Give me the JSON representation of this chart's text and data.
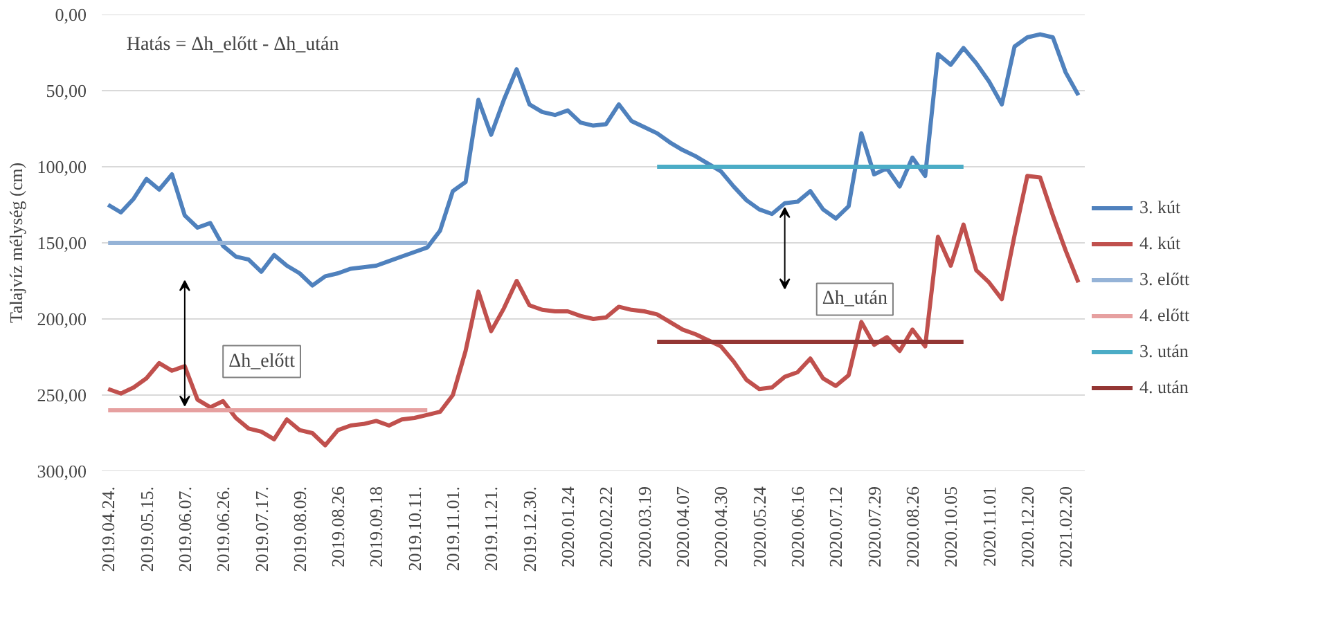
{
  "chart_data": {
    "type": "line",
    "ylabel": "Talajvíz mélység (cm)",
    "categories": [
      "2019.04.24.",
      null,
      null,
      "2019.05.15.",
      null,
      null,
      "2019.06.07.",
      null,
      null,
      "2019.06.26.",
      null,
      null,
      "2019.07.17.",
      null,
      null,
      "2019.08.09.",
      null,
      null,
      "2019.08.26",
      null,
      null,
      "2019.09.18",
      null,
      null,
      "2019.10.11.",
      null,
      null,
      "2019.11.01.",
      null,
      null,
      "2019.11.21.",
      null,
      null,
      "2019.12.30.",
      null,
      null,
      "2020.01.24",
      null,
      null,
      "2020.02.22",
      null,
      null,
      "2020.03.19",
      null,
      null,
      "2020.04.07",
      null,
      null,
      "2020.04.30",
      null,
      null,
      "2020.05.24",
      null,
      null,
      "2020.06.16",
      null,
      null,
      "2020.07.12",
      null,
      null,
      "2020.07.29",
      null,
      null,
      "2020.08.26",
      null,
      null,
      "2020.10.05",
      null,
      null,
      "2020.11.01",
      null,
      null,
      "2020.12.20",
      null,
      null,
      "2021.02.20",
      null
    ],
    "series": [
      {
        "name": "3. kút",
        "color": "#4f81bd",
        "values": [
          125,
          130,
          121,
          108,
          115,
          105,
          132,
          140,
          137,
          152,
          159,
          161,
          169,
          158,
          165,
          170,
          178,
          172,
          170,
          167,
          166,
          165,
          162,
          159,
          156,
          153,
          142,
          116,
          110,
          56,
          79,
          56,
          36,
          59,
          64,
          66,
          63,
          71,
          73,
          72,
          59,
          70,
          74,
          78,
          84,
          89,
          93,
          98,
          103,
          113,
          122,
          128,
          131,
          124,
          123,
          116,
          128,
          134,
          126,
          78,
          105,
          101,
          113,
          94,
          106,
          26,
          33,
          22,
          32,
          44,
          59,
          21,
          15,
          13,
          15,
          38,
          53
        ]
      },
      {
        "name": "4. kút",
        "color": "#c0504d",
        "values": [
          246,
          249,
          245,
          239,
          229,
          234,
          231,
          253,
          258,
          254,
          265,
          272,
          274,
          279,
          266,
          273,
          275,
          283,
          273,
          270,
          269,
          267,
          270,
          266,
          265,
          263,
          261,
          250,
          221,
          182,
          208,
          193,
          175,
          191,
          194,
          195,
          195,
          198,
          200,
          199,
          192,
          194,
          195,
          197,
          202,
          207,
          210,
          214,
          218,
          228,
          240,
          246,
          245,
          238,
          235,
          226,
          239,
          244,
          237,
          202,
          217,
          212,
          221,
          207,
          218,
          146,
          165,
          138,
          168,
          176,
          187,
          145,
          106,
          107,
          132,
          155,
          176
        ]
      },
      {
        "name": "3. előtt",
        "color": "#95b3d7",
        "values": [
          150,
          150,
          150,
          150,
          150,
          150,
          150,
          150,
          150,
          150,
          150,
          150,
          150,
          150,
          150,
          150,
          150,
          150,
          150,
          150,
          150,
          150,
          150,
          150,
          150,
          150,
          null,
          null,
          null,
          null,
          null,
          null,
          null,
          null,
          null,
          null,
          null,
          null,
          null,
          null,
          null,
          null,
          null,
          null,
          null,
          null,
          null,
          null,
          null,
          null,
          null,
          null,
          null,
          null,
          null,
          null,
          null,
          null,
          null,
          null,
          null,
          null,
          null,
          null,
          null,
          null,
          null,
          null,
          null,
          null,
          null,
          null,
          null,
          null,
          null,
          null,
          null
        ]
      },
      {
        "name": "4. előtt",
        "color": "#e6a0a0",
        "values": [
          260,
          260,
          260,
          260,
          260,
          260,
          260,
          260,
          260,
          260,
          260,
          260,
          260,
          260,
          260,
          260,
          260,
          260,
          260,
          260,
          260,
          260,
          260,
          260,
          260,
          260,
          null,
          null,
          null,
          null,
          null,
          null,
          null,
          null,
          null,
          null,
          null,
          null,
          null,
          null,
          null,
          null,
          null,
          null,
          null,
          null,
          null,
          null,
          null,
          null,
          null,
          null,
          null,
          null,
          null,
          null,
          null,
          null,
          null,
          null,
          null,
          null,
          null,
          null,
          null,
          null,
          null,
          null,
          null,
          null,
          null,
          null,
          null,
          null,
          null,
          null,
          null
        ]
      },
      {
        "name": "3. után",
        "color": "#4bacc6",
        "values": [
          null,
          null,
          null,
          null,
          null,
          null,
          null,
          null,
          null,
          null,
          null,
          null,
          null,
          null,
          null,
          null,
          null,
          null,
          null,
          null,
          null,
          null,
          null,
          null,
          null,
          null,
          null,
          null,
          null,
          null,
          null,
          null,
          null,
          null,
          null,
          null,
          null,
          null,
          null,
          null,
          null,
          null,
          null,
          100,
          100,
          100,
          100,
          100,
          100,
          100,
          100,
          100,
          100,
          100,
          100,
          100,
          100,
          100,
          100,
          100,
          100,
          100,
          100,
          100,
          100,
          100,
          100,
          100,
          null,
          null,
          null,
          null,
          null,
          null,
          null,
          null,
          null
        ]
      },
      {
        "name": "4. után",
        "color": "#943634",
        "values": [
          null,
          null,
          null,
          null,
          null,
          null,
          null,
          null,
          null,
          null,
          null,
          null,
          null,
          null,
          null,
          null,
          null,
          null,
          null,
          null,
          null,
          null,
          null,
          null,
          null,
          null,
          null,
          null,
          null,
          null,
          null,
          null,
          null,
          null,
          null,
          null,
          null,
          null,
          null,
          null,
          null,
          null,
          null,
          215,
          215,
          215,
          215,
          215,
          215,
          215,
          215,
          215,
          215,
          215,
          215,
          215,
          215,
          215,
          215,
          215,
          215,
          215,
          215,
          215,
          215,
          215,
          215,
          215,
          null,
          null,
          null,
          null,
          null,
          null,
          null,
          null,
          null
        ]
      }
    ],
    "ylim": [
      300,
      0
    ],
    "yticks": [
      {
        "value": 0,
        "label": "0,00"
      },
      {
        "value": 50,
        "label": "50,00"
      },
      {
        "value": 100,
        "label": "100,00"
      },
      {
        "value": 150,
        "label": "150,00"
      },
      {
        "value": 200,
        "label": "200,00"
      },
      {
        "value": 250,
        "label": "250,00"
      },
      {
        "value": 300,
        "label": "300,00"
      }
    ],
    "annotations": [
      "Hatás = Δh_előtt - Δh_után",
      "Δh_előtt",
      "Δh_után"
    ],
    "grid": "y",
    "legend": "right",
    "marker": "none",
    "line_style": "solid"
  }
}
